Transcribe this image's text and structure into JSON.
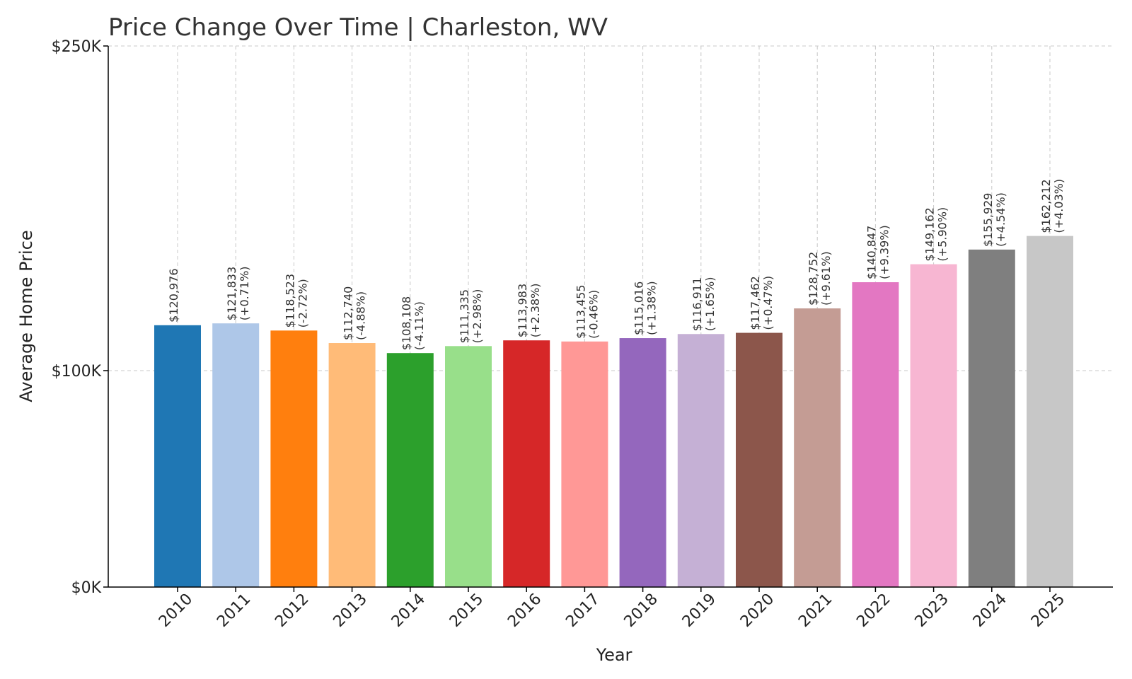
{
  "chart_data": {
    "type": "bar",
    "title": "Price Change Over Time | Charleston, WV",
    "xlabel": "Year",
    "ylabel": "Average Home Price",
    "ylim": [
      0,
      250000
    ],
    "yticks": [
      {
        "value": 0,
        "label": "$0K"
      },
      {
        "value": 100000,
        "label": "$100K"
      },
      {
        "value": 250000,
        "label": "$250K"
      }
    ],
    "grid": true,
    "categories": [
      "2010",
      "2011",
      "2012",
      "2013",
      "2014",
      "2015",
      "2016",
      "2017",
      "2018",
      "2019",
      "2020",
      "2021",
      "2022",
      "2023",
      "2024",
      "2025"
    ],
    "values": [
      120976,
      121833,
      118523,
      112740,
      108108,
      111335,
      113983,
      113455,
      115016,
      116911,
      117462,
      128752,
      140847,
      149162,
      155929,
      162212
    ],
    "value_labels": [
      "$120,976",
      "$121,833",
      "$118,523",
      "$112,740",
      "$108,108",
      "$111,335",
      "$113,983",
      "$113,455",
      "$115,016",
      "$116,911",
      "$117,462",
      "$128,752",
      "$140,847",
      "$149,162",
      "$155,929",
      "$162,212"
    ],
    "change_labels": [
      "",
      "(+0.71%)",
      "(-2.72%)",
      "(-4.88%)",
      "(-4.11%)",
      "(+2.98%)",
      "(+2.38%)",
      "(-0.46%)",
      "(+1.38%)",
      "(+1.65%)",
      "(+0.47%)",
      "(+9.61%)",
      "(+9.39%)",
      "(+5.90%)",
      "(+4.54%)",
      "(+4.03%)"
    ],
    "colors": [
      "#1f77b4",
      "#aec7e8",
      "#ff7f0e",
      "#ffbb78",
      "#2ca02c",
      "#98df8a",
      "#d62728",
      "#ff9896",
      "#9467bd",
      "#c5b0d5",
      "#8c564b",
      "#c49c94",
      "#e377c2",
      "#f7b6d2",
      "#7f7f7f",
      "#c7c7c7"
    ]
  }
}
